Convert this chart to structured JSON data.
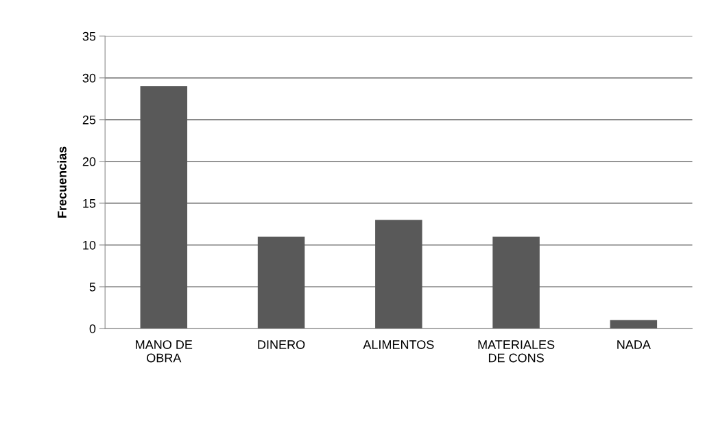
{
  "chart_data": {
    "type": "bar",
    "ylabel": "Frecuencias",
    "categories": [
      "MANO DE\nOBRA",
      "DINERO",
      "ALIMENTOS",
      "MATERIALES\nDE CONS",
      "NADA"
    ],
    "values": [
      29,
      11,
      13,
      11,
      1
    ],
    "color": "#595959",
    "ylim": [
      0,
      35
    ],
    "yticks": [
      0,
      5,
      10,
      15,
      20,
      25,
      30,
      35
    ],
    "grid": "y",
    "legend": false
  }
}
